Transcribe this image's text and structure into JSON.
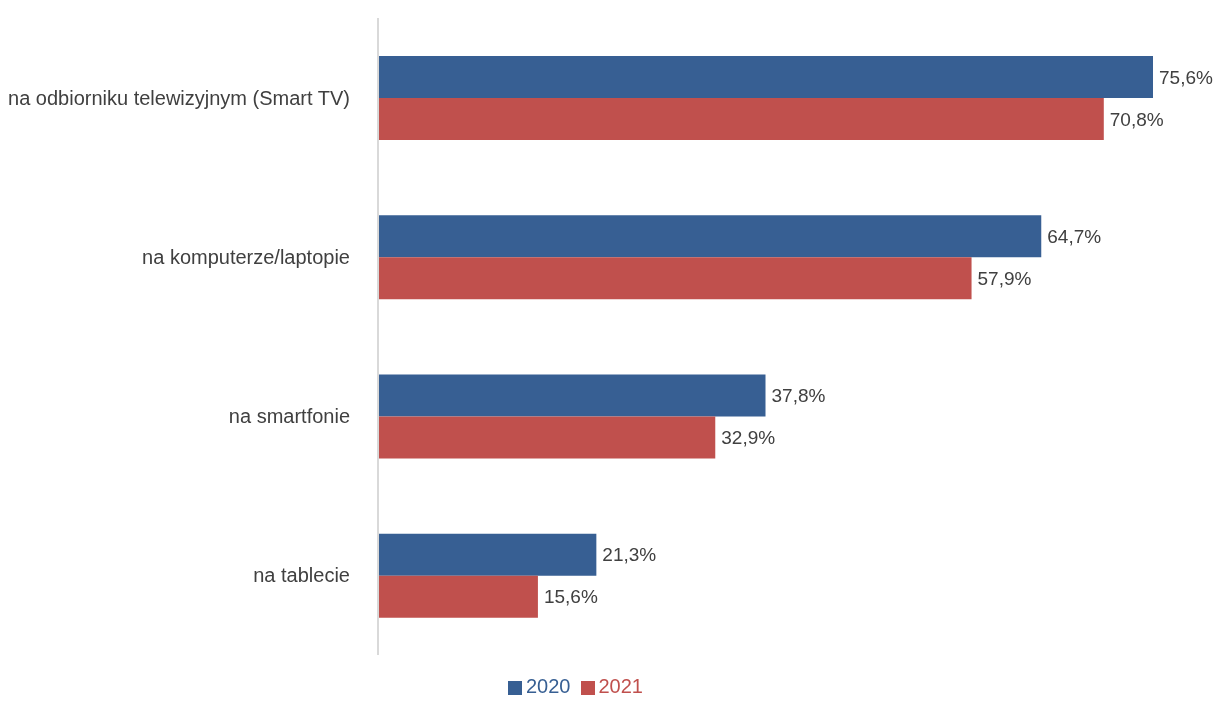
{
  "chart_data": {
    "type": "bar",
    "orientation": "horizontal",
    "categories": [
      "na odbiorniku telewizyjnym (Smart TV)",
      "na komputerze/laptopie",
      "na smartfonie",
      "na tablecie"
    ],
    "series": [
      {
        "name": "2020",
        "color": "#375f93",
        "values": [
          75.6,
          64.7,
          37.8,
          21.3
        ],
        "value_labels": [
          "75,6%",
          "64,7%",
          "37,8%",
          "21,3%"
        ]
      },
      {
        "name": "2021",
        "color": "#c0504d",
        "values": [
          70.8,
          57.9,
          32.9,
          15.6
        ],
        "value_labels": [
          "70,8%",
          "57,9%",
          "32,9%",
          "15,6%"
        ]
      }
    ],
    "legend": "bottom",
    "grid": false
  }
}
